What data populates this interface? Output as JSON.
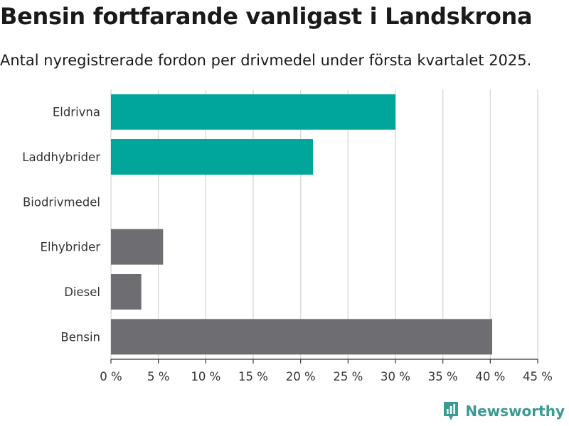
{
  "header": {
    "title": "Bensin fortfarande vanligast i Landskrona",
    "subtitle": "Antal nyregistrerade fordon per drivmedel under första kvartalet 2025."
  },
  "brand": {
    "name": "Newsworthy",
    "icon": "newsworthy-logo-icon",
    "color": "#3a9a94"
  },
  "chart_data": {
    "type": "bar",
    "orientation": "horizontal",
    "categories": [
      "Eldrivna",
      "Laddhybrider",
      "Biodrivmedel",
      "Elhybrider",
      "Diesel",
      "Bensin"
    ],
    "values": [
      30.0,
      21.3,
      0,
      5.5,
      3.2,
      40.2
    ],
    "colors": [
      "#00a699",
      "#00a699",
      "#6e6d72",
      "#6e6d72",
      "#6e6d72",
      "#6e6d72"
    ],
    "xlim": [
      0,
      45
    ],
    "xticks": [
      0,
      5,
      10,
      15,
      20,
      25,
      30,
      35,
      40,
      45
    ],
    "tick_suffix": " %",
    "grid": true
  }
}
